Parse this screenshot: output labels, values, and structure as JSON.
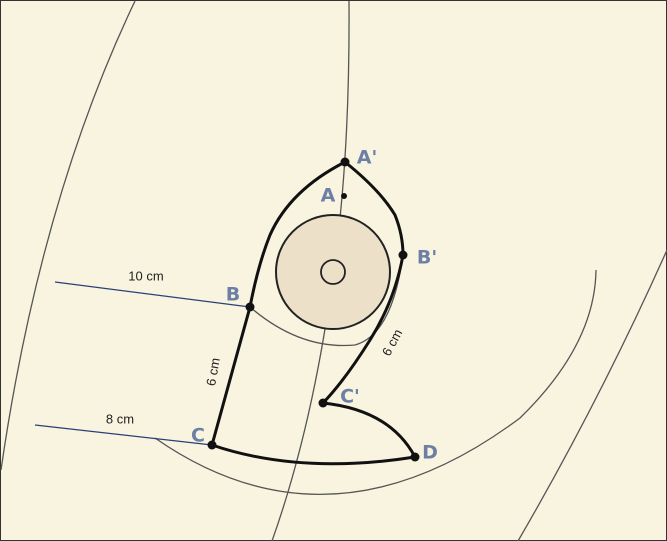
{
  "labels": {
    "a_prime": "A'",
    "a": "A",
    "b_prime": "B'",
    "b": "B",
    "c_prime": "C'",
    "c": "C",
    "d": "D"
  },
  "measurements": {
    "upper": "10 cm",
    "lower": "8 cm",
    "left_vertical": "6 cm",
    "right_diagonal": "6 cm"
  }
}
